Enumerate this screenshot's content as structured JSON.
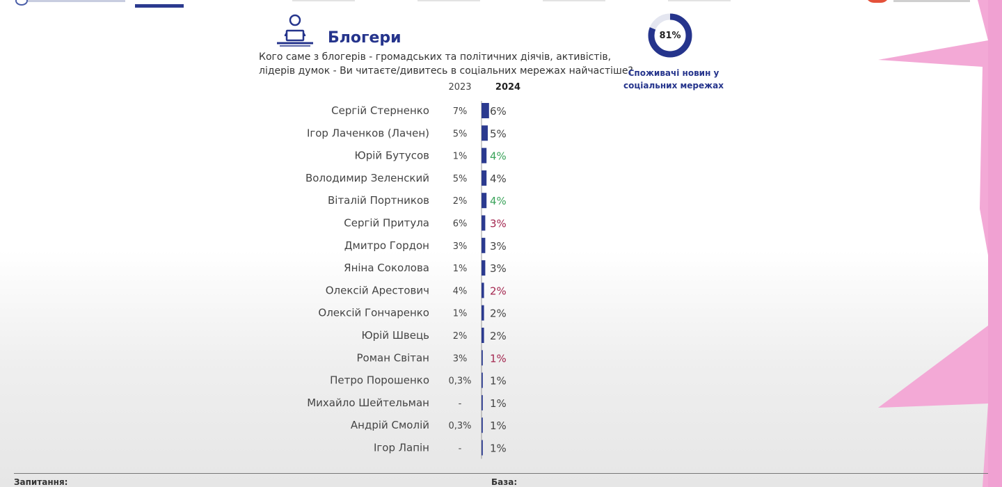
{
  "header": {
    "title": "Блогери",
    "question": "Кого саме з блогерів - громадських та політичних діячів, активістів, лідерів думок - Ви читаєте/дивитесь  в соціальних мережах найчастіше?"
  },
  "donut": {
    "value": 81,
    "label": "81%",
    "caption": "Споживачі новин у соціальних мережах"
  },
  "footer": {
    "question_label": "Запитання:",
    "base_label": "База:"
  },
  "colors": {
    "brand_blue": "#25348c",
    "bar_blue": "#2b3a8f",
    "increase_green": "#3aa35a",
    "decrease_red": "#a3264f",
    "neutral_text": "#444444",
    "decor_pink": "#f3a9d6"
  },
  "chart_data": {
    "type": "bar",
    "orientation": "horizontal",
    "title": "",
    "xlabel": "",
    "ylabel": "",
    "xlim": [
      0,
      7
    ],
    "grid": false,
    "column_headers": [
      "2023",
      "2024"
    ],
    "categories": [
      "Сергій Стерненко",
      "Ігор Лаченков (Лачен)",
      "Юрій Бутусов",
      "Володимир Зеленский",
      "Віталій Портников",
      "Сергій Притула",
      "Дмитро Гордон",
      "Яніна Соколова",
      "Олексій Арестович",
      "Олексій Гончаренко",
      "Юрій Швець",
      "Роман Світан",
      "Петро Порошенко",
      "Михайло Шейтельман",
      "Андрій Смолій",
      "Ігор Лапін"
    ],
    "series": [
      {
        "name": "2024",
        "values": [
          6,
          5,
          4,
          4,
          4,
          3,
          3,
          3,
          2,
          2,
          2,
          1,
          1,
          1,
          1,
          1
        ],
        "labels": [
          "6%",
          "5%",
          "4%",
          "4%",
          "4%",
          "3%",
          "3%",
          "3%",
          "2%",
          "2%",
          "2%",
          "1%",
          "1%",
          "1%",
          "1%",
          "1%"
        ],
        "trend": [
          "same",
          "same",
          "up",
          "same",
          "up",
          "down",
          "same",
          "same",
          "down",
          "same",
          "same",
          "down",
          "same",
          "same",
          "same",
          "same"
        ]
      },
      {
        "name": "2023",
        "labels": [
          "7%",
          "5%",
          "1%",
          "5%",
          "2%",
          "6%",
          "3%",
          "1%",
          "4%",
          "1%",
          "2%",
          "3%",
          "0,3%",
          "-",
          "0,3%",
          "-"
        ]
      }
    ]
  }
}
